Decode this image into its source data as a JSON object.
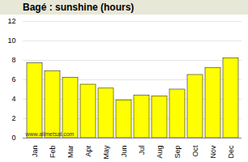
{
  "chart_data": {
    "type": "bar",
    "title": "Bagé : sunshine (hours)",
    "categories": [
      "Jan",
      "Feb",
      "Mar",
      "Apr",
      "May",
      "Jun",
      "Jul",
      "Aug",
      "Sep",
      "Oct",
      "Nov",
      "Dec"
    ],
    "values": [
      7.7,
      6.9,
      6.2,
      5.5,
      5.1,
      3.9,
      4.4,
      4.3,
      5.0,
      6.5,
      7.2,
      8.2
    ],
    "color": "#FFFF00",
    "ylim": [
      0,
      12
    ],
    "yticks": [
      0,
      2,
      4,
      6,
      8,
      10,
      12
    ],
    "grid": true,
    "annotations": [
      "www.allmetsat.com"
    ]
  }
}
